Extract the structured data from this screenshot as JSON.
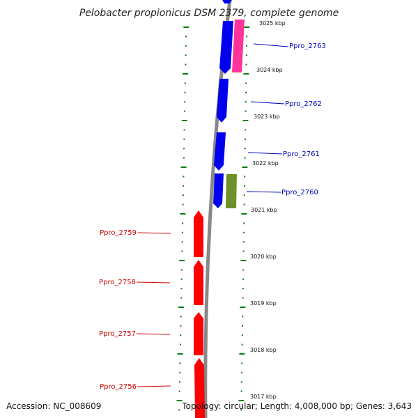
{
  "title": "Pelobacter propionicus DSM 2379, complete genome",
  "footer": {
    "accession": "Accession: NC_008609",
    "summary": "Topology: circular; Length: 4,008,000 bp; Genes: 3,643"
  },
  "colors": {
    "forward_gene": "#0000ee",
    "forward_rna": "#ff3399",
    "forward_other": "#6f8f2a",
    "reverse_gene": "#ff0000",
    "backbone": "#888888",
    "tick": "#008000",
    "forward_label": "#0000bb",
    "reverse_label": "#cc0000"
  },
  "kbp_labels": [
    "3025 kbp",
    "3024 kbp",
    "3023 kbp",
    "3022 kbp",
    "3021 kbp",
    "3020 kbp",
    "3019 kbp",
    "3018 kbp",
    "3017 kbp"
  ],
  "forward_genes": [
    {
      "id": "Ppro_2763",
      "color": "blue",
      "label": "Ppro_2763"
    },
    {
      "id": "Ppro_2763_rna",
      "color": "pink",
      "label": ""
    },
    {
      "id": "Ppro_2762",
      "color": "blue",
      "label": "Ppro_2762"
    },
    {
      "id": "Ppro_2761",
      "color": "blue",
      "label": "Ppro_2761"
    },
    {
      "id": "Ppro_2760a",
      "color": "blue",
      "label": ""
    },
    {
      "id": "Ppro_2760",
      "color": "olive",
      "label": "Ppro_2760"
    }
  ],
  "reverse_genes": [
    {
      "id": "Ppro_2759",
      "label": "Ppro_2759"
    },
    {
      "id": "Ppro_2758",
      "label": "Ppro_2758"
    },
    {
      "id": "Ppro_2757",
      "label": "Ppro_2757"
    },
    {
      "id": "Ppro_2756",
      "label": "Ppro_2756"
    }
  ]
}
